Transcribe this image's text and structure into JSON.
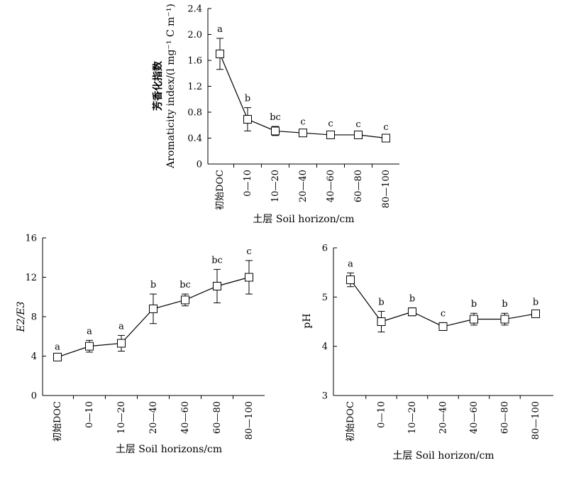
{
  "chart_data": [
    {
      "type": "line",
      "categories": [
        "初始DOC",
        "0—10",
        "10—20",
        "20—40",
        "40—60",
        "60—80",
        "80—100"
      ],
      "values": [
        1.7,
        0.69,
        0.51,
        0.48,
        0.45,
        0.45,
        0.4
      ],
      "errors": [
        0.24,
        0.18,
        0.07,
        0.03,
        0.03,
        0.02,
        0.03
      ],
      "labels": [
        "a",
        "b",
        "bc",
        "c",
        "c",
        "c",
        "c"
      ],
      "ylabel_cn": "芳香化指数",
      "ylabel_en": "Aromaticity index/(l mg⁻¹ C m⁻¹)",
      "xlabel": "土层 Soil horizon/cm",
      "ylim": [
        0,
        2.4
      ],
      "yticks": [
        "0",
        "0.4",
        "0.8",
        "1.2",
        "1.6",
        "2.0",
        "2.4"
      ],
      "ytick_values": [
        0,
        0.4,
        0.8,
        1.2,
        1.6,
        2.0,
        2.4
      ]
    },
    {
      "type": "line",
      "categories": [
        "初始DOC",
        "0—10",
        "10—20",
        "20—40",
        "40—60",
        "60—80",
        "80—100"
      ],
      "values": [
        3.9,
        5.0,
        5.3,
        8.8,
        9.7,
        11.1,
        12.0
      ],
      "errors": [
        0.1,
        0.6,
        0.8,
        1.5,
        0.6,
        1.7,
        1.7
      ],
      "labels": [
        "a",
        "a",
        "a",
        "b",
        "bc",
        "bc",
        "c"
      ],
      "ylabel": "E2/E3",
      "xlabel": "土层 Soil horizons/cm",
      "ylim": [
        0,
        16
      ],
      "yticks": [
        "0",
        "4",
        "8",
        "12",
        "16"
      ],
      "ytick_values": [
        0,
        4,
        8,
        12,
        16
      ]
    },
    {
      "type": "line",
      "categories": [
        "初始DOC",
        "0—10",
        "10—20",
        "20—40",
        "40—60",
        "60—80",
        "80—100"
      ],
      "values": [
        5.35,
        4.5,
        4.7,
        4.4,
        4.55,
        4.55,
        4.66
      ],
      "errors": [
        0.14,
        0.21,
        0.08,
        0.08,
        0.12,
        0.12,
        0.05
      ],
      "labels": [
        "a",
        "b",
        "b",
        "c",
        "b",
        "b",
        "b"
      ],
      "ylabel": "pH",
      "xlabel": "土层 Soil horizon/cm",
      "ylim": [
        3,
        6
      ],
      "yticks": [
        "3",
        "4",
        "5",
        "6"
      ],
      "ytick_values": [
        3,
        4,
        5,
        6
      ]
    }
  ]
}
